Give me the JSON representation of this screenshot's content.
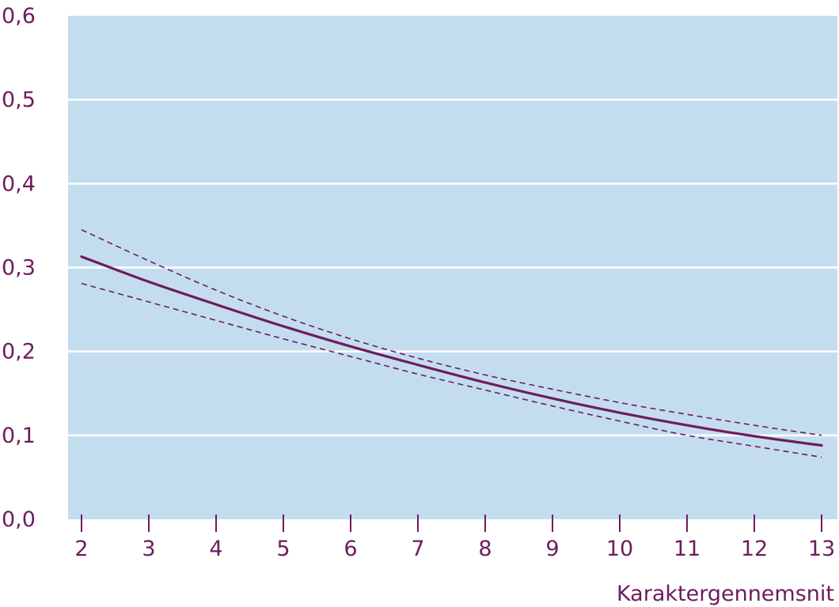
{
  "chart_data": {
    "type": "line",
    "title": "",
    "xlabel": "Karaktergennemsnit",
    "ylabel": "",
    "x": [
      2,
      3,
      4,
      5,
      6,
      7,
      8,
      9,
      10,
      11,
      12,
      13
    ],
    "x_tick_labels": [
      "2",
      "3",
      "4",
      "5",
      "6",
      "7",
      "8",
      "9",
      "10",
      "11",
      "12",
      "13"
    ],
    "y_ticks": [
      0,
      0.1,
      0.2,
      0.3,
      0.4,
      0.5,
      0.6
    ],
    "y_tick_labels": [
      "0,0",
      "0,1",
      "0,2",
      "0,3",
      "0,4",
      "0,5",
      "0,6"
    ],
    "xlim": [
      2,
      13
    ],
    "ylim": [
      0,
      0.6
    ],
    "grid": "horizontal",
    "series": [
      {
        "role": "estimate",
        "style": "solid",
        "values": [
          0.313,
          0.283,
          0.256,
          0.23,
          0.206,
          0.184,
          0.163,
          0.144,
          0.127,
          0.112,
          0.099,
          0.088
        ]
      },
      {
        "role": "upper",
        "style": "dashed",
        "values": [
          0.345,
          0.308,
          0.273,
          0.242,
          0.215,
          0.192,
          0.172,
          0.155,
          0.139,
          0.125,
          0.112,
          0.1
        ]
      },
      {
        "role": "lower",
        "style": "dashed",
        "values": [
          0.281,
          0.259,
          0.237,
          0.215,
          0.194,
          0.173,
          0.154,
          0.135,
          0.117,
          0.1,
          0.087,
          0.074
        ]
      }
    ],
    "colors": {
      "plot_background": "#c3ddef",
      "gridline": "#ffffff",
      "line": "#6e1c5c",
      "text": "#6e1c5c"
    }
  }
}
